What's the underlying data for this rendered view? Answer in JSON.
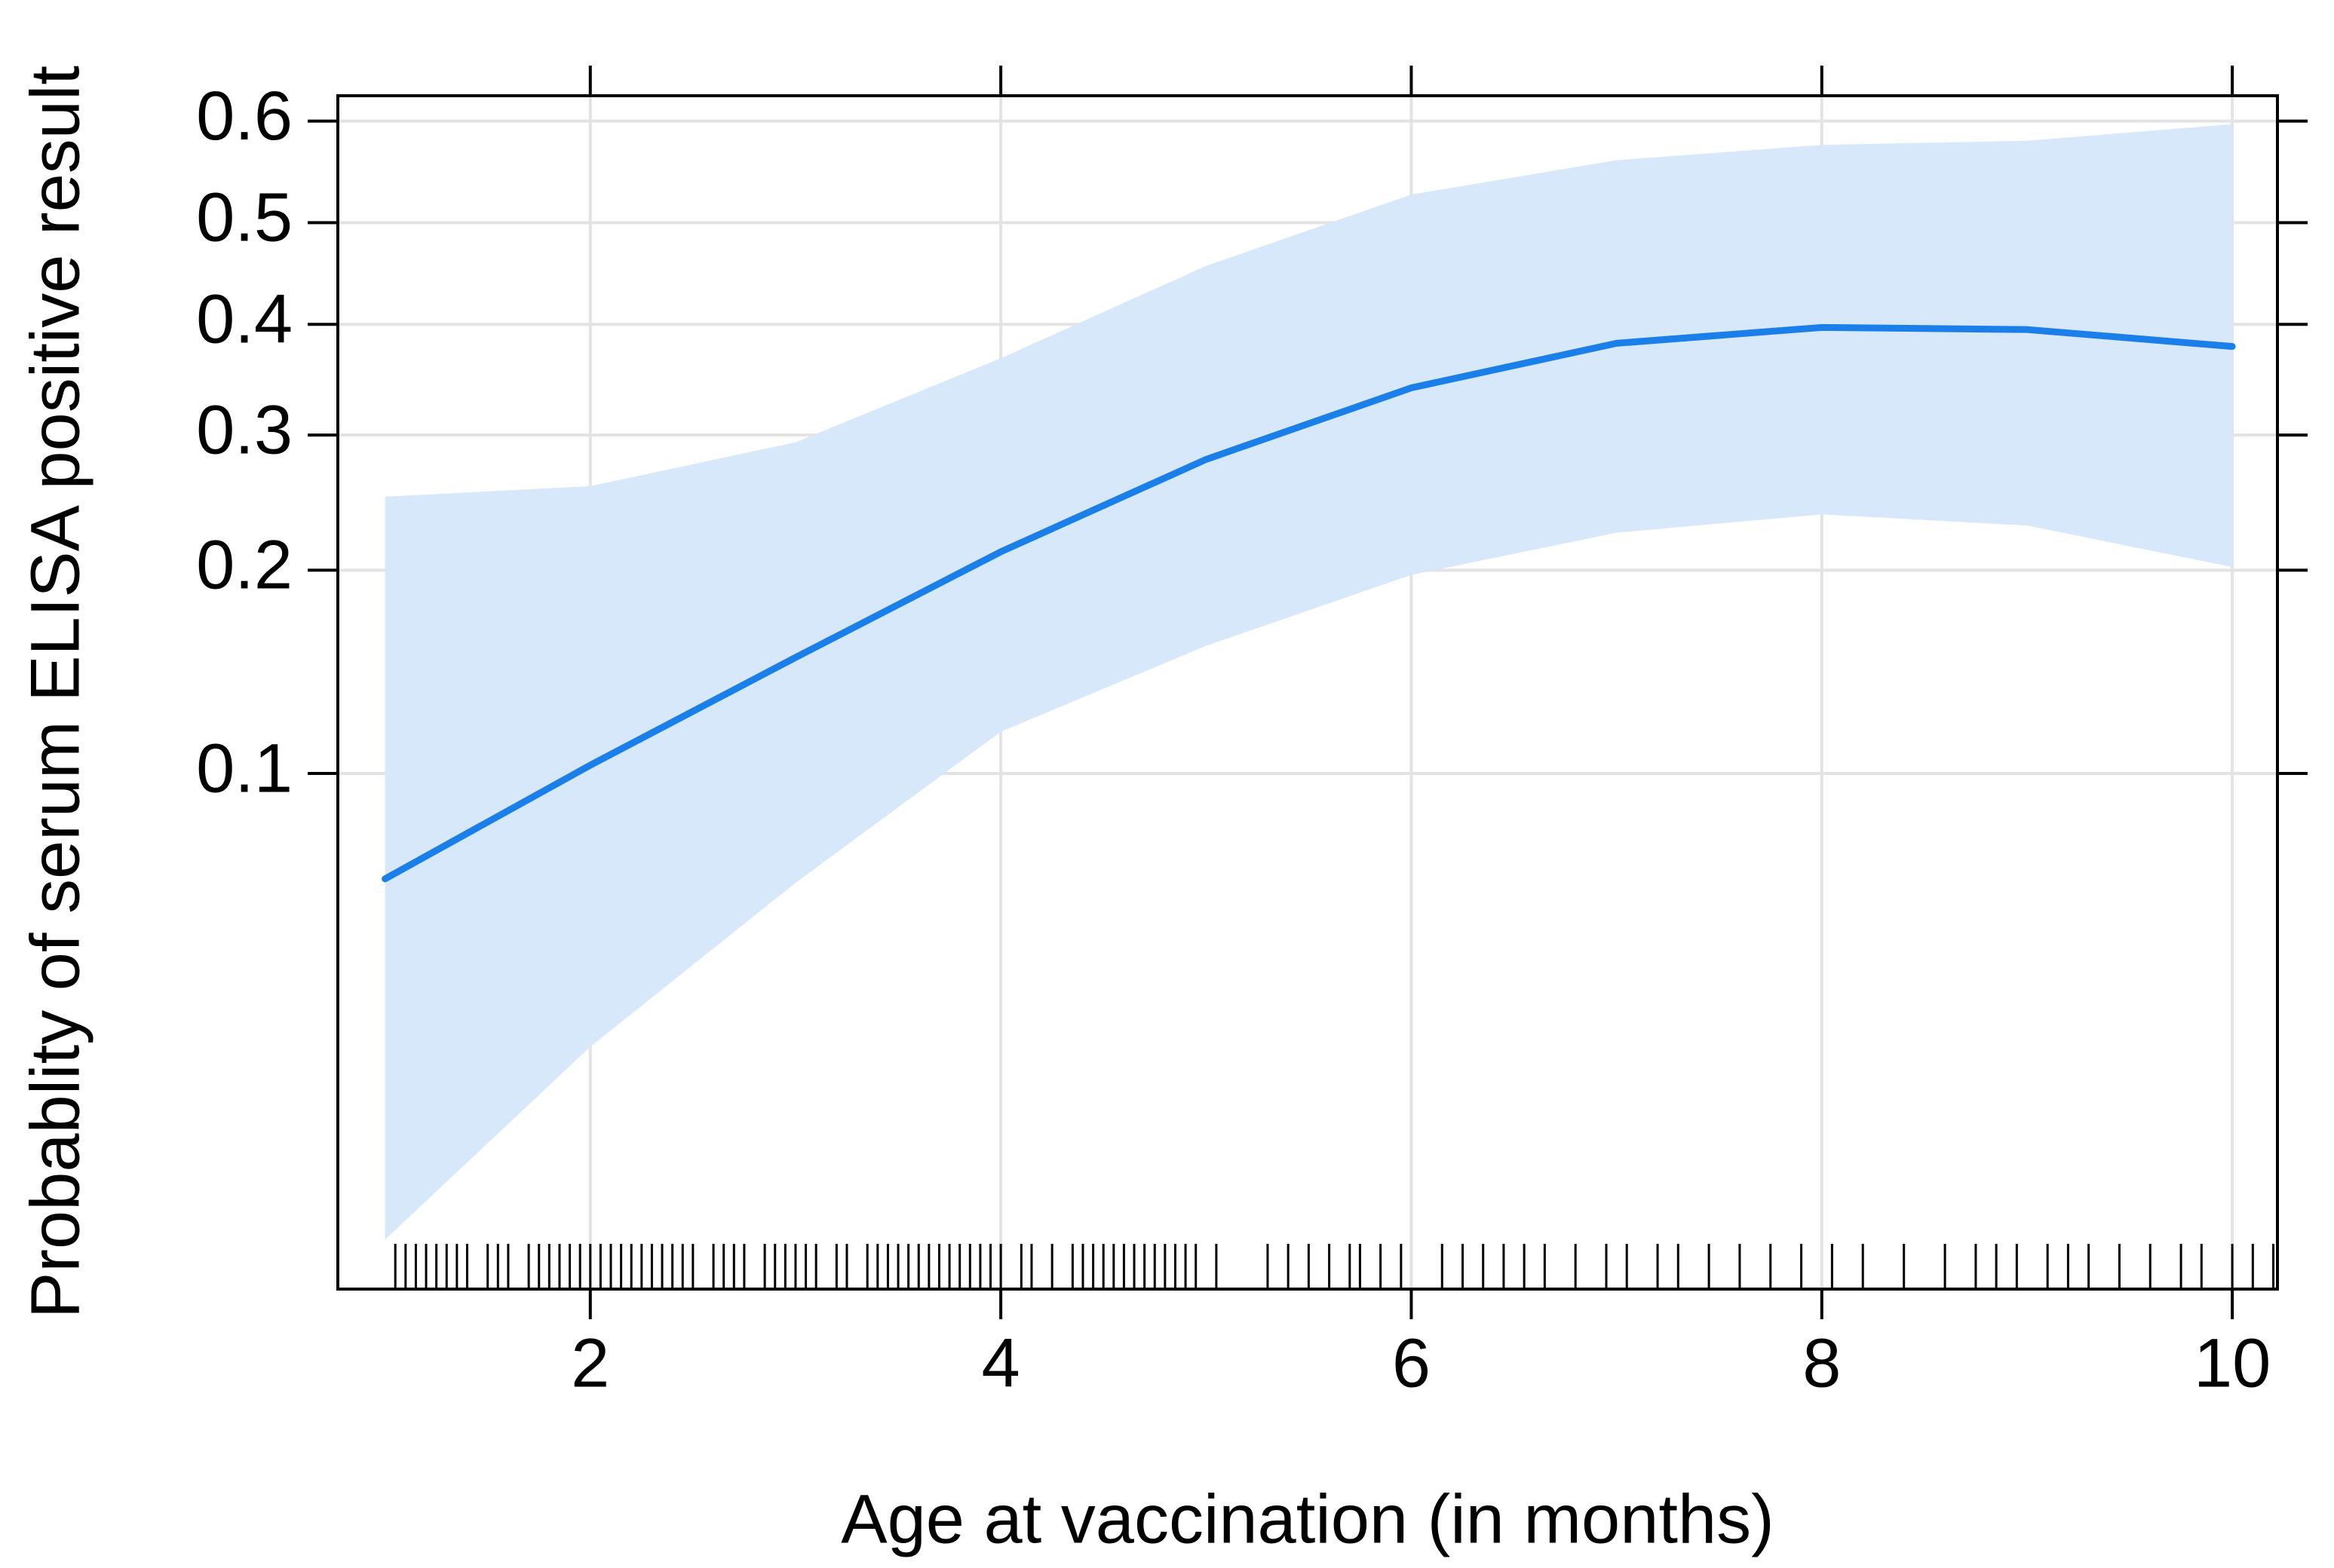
{
  "chart_data": {
    "type": "line",
    "yscale": "logit",
    "xlabel": "Age at vaccination (in months)",
    "ylabel": "Probablity of serum ELISA positive result",
    "x": [
      1,
      2,
      3,
      4,
      5,
      6,
      7,
      8,
      9,
      10
    ],
    "fit": [
      0.068,
      0.103,
      0.15,
      0.212,
      0.28,
      0.341,
      0.382,
      0.397,
      0.395,
      0.379
    ],
    "lower": [
      0.017,
      0.036,
      0.067,
      0.116,
      0.156,
      0.197,
      0.225,
      0.238,
      0.23,
      0.202
    ],
    "upper": [
      0.251,
      0.259,
      0.294,
      0.368,
      0.457,
      0.528,
      0.562,
      0.577,
      0.581,
      0.597
    ],
    "line_color": "#1a7fe8",
    "band_color": "#d6e8fa",
    "rug": [
      1.05,
      1.1,
      1.15,
      1.2,
      1.25,
      1.3,
      1.35,
      1.4,
      1.5,
      1.55,
      1.6,
      1.7,
      1.75,
      1.8,
      1.85,
      1.9,
      1.95,
      2.0,
      2.05,
      2.1,
      2.15,
      2.2,
      2.25,
      2.3,
      2.35,
      2.4,
      2.45,
      2.5,
      2.6,
      2.65,
      2.7,
      2.75,
      2.85,
      2.9,
      2.95,
      3.0,
      3.05,
      3.1,
      3.2,
      3.25,
      3.35,
      3.4,
      3.45,
      3.5,
      3.55,
      3.6,
      3.65,
      3.7,
      3.75,
      3.8,
      3.85,
      3.9,
      3.95,
      4.0,
      4.1,
      4.15,
      4.25,
      4.35,
      4.4,
      4.45,
      4.5,
      4.55,
      4.6,
      4.65,
      4.7,
      4.75,
      4.8,
      4.85,
      4.9,
      4.95,
      5.05,
      5.3,
      5.4,
      5.5,
      5.6,
      5.7,
      5.75,
      5.85,
      5.95,
      6.15,
      6.25,
      6.35,
      6.45,
      6.55,
      6.65,
      6.8,
      6.95,
      7.05,
      7.2,
      7.3,
      7.45,
      7.6,
      7.75,
      7.9,
      8.05,
      8.2,
      8.4,
      8.6,
      8.75,
      8.85,
      8.95,
      9.1,
      9.2,
      9.3,
      9.45,
      9.6,
      9.75,
      9.85,
      10.0,
      10.1,
      10.2
    ],
    "xlim": [
      0.77,
      10.22
    ],
    "ylim": [
      0.014,
      0.624
    ],
    "xticks": [
      2,
      4,
      6,
      8,
      10
    ],
    "yticks": [
      0.1,
      0.2,
      0.3,
      0.4,
      0.5,
      0.6
    ],
    "grid": true
  }
}
